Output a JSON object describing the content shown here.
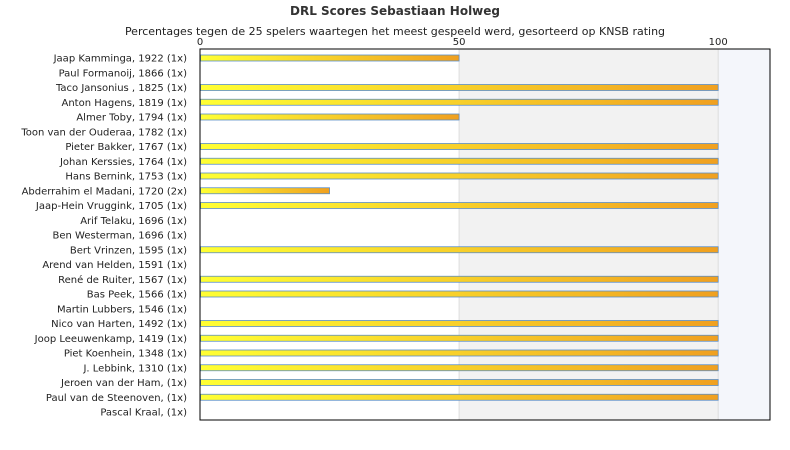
{
  "chart_data": {
    "type": "bar",
    "orientation": "horizontal",
    "title": "DRL Scores Sebastiaan Holweg",
    "subtitle": "Percentages tegen de 25 spelers waartegen het meest gespeeld werd, gesorteerd op KNSB rating",
    "xlim": [
      0,
      110
    ],
    "xticks": [
      0,
      50,
      100
    ],
    "xtick_labels": [
      "0",
      "50",
      "100"
    ],
    "axis_position": "top",
    "grid": true,
    "categories": [
      "Jaap Kamminga, 1922 (1x)",
      "Paul Formanoij, 1866 (1x)",
      "Taco Jansonius , 1825 (1x)",
      "Anton Hagens, 1819 (1x)",
      "Almer Toby, 1794 (1x)",
      "Toon van der Ouderaa, 1782 (1x)",
      "Pieter Bakker, 1767 (1x)",
      "Johan Kerssies, 1764 (1x)",
      "Hans Bernink, 1753 (1x)",
      "Abderrahim el Madani, 1720 (2x)",
      "Jaap-Hein Vruggink, 1705 (1x)",
      "Arif Telaku, 1696 (1x)",
      "Ben Westerman, 1696 (1x)",
      "Bert Vrinzen, 1595 (1x)",
      "Arend van Helden, 1591 (1x)",
      "René de Ruiter, 1567 (1x)",
      "Bas Peek, 1566 (1x)",
      "Martin Lubbers, 1546 (1x)",
      "Nico van Harten, 1492 (1x)",
      "Joop Leeuwenkamp, 1419 (1x)",
      "Piet Koenhein, 1348 (1x)",
      "J. Lebbink, 1310 (1x)",
      "Jeroen van der Ham,  (1x)",
      "Paul van de Steenoven,  (1x)",
      "Pascal Kraal,  (1x)"
    ],
    "values": [
      50,
      0,
      100,
      100,
      50,
      0,
      100,
      100,
      100,
      25,
      100,
      0,
      0,
      100,
      0,
      100,
      100,
      0,
      100,
      100,
      100,
      100,
      100,
      100,
      0
    ],
    "colors": {
      "bar_start": "#ffff33",
      "bar_end": "#f0a020",
      "bar_border": "#5a8ec8",
      "band_shade": "#f2f2f2",
      "band_shade_right": "#f4f6fb",
      "gridline": "#dddddd",
      "axis": "#000000"
    }
  }
}
